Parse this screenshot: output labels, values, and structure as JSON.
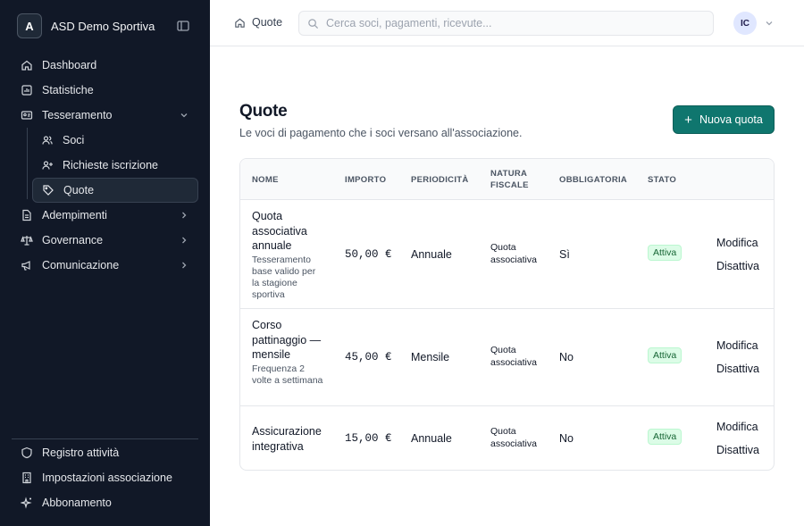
{
  "brand": {
    "initial": "A",
    "name": "ASD Demo Sportiva"
  },
  "sidebar": {
    "items": [
      {
        "label": "Dashboard",
        "icon": "home-icon"
      },
      {
        "label": "Statistiche",
        "icon": "chart-icon"
      },
      {
        "label": "Tesseramento",
        "icon": "id-card-icon",
        "expanded": true,
        "children": [
          {
            "label": "Soci",
            "icon": "users-icon"
          },
          {
            "label": "Richieste iscrizione",
            "icon": "user-plus-icon"
          },
          {
            "label": "Quote",
            "icon": "tag-icon",
            "active": true
          }
        ]
      },
      {
        "label": "Adempimenti",
        "icon": "document-icon"
      },
      {
        "label": "Governance",
        "icon": "scale-icon"
      },
      {
        "label": "Comunicazione",
        "icon": "megaphone-icon"
      }
    ],
    "footer": [
      {
        "label": "Registro attività",
        "icon": "shield-icon"
      },
      {
        "label": "Impostazioni associazione",
        "icon": "building-icon"
      },
      {
        "label": "Abbonamento",
        "icon": "sparkles-icon"
      }
    ]
  },
  "topbar": {
    "breadcrumb": "Quote",
    "search_placeholder": "Cerca soci, pagamenti, ricevute...",
    "user_initials": "IC"
  },
  "main": {
    "title": "Quote",
    "subtitle": "Le voci di pagamento che i soci versano all'associazione.",
    "new_button": "Nuova quota"
  },
  "table": {
    "headers": {
      "nome": "NOME",
      "importo": "IMPORTO",
      "periodicita": "PERIODICITÀ",
      "natura": "NATURA FISCALE",
      "obbligatoria": "OBBLIGATORIA",
      "stato": "STATO"
    },
    "rows": [
      {
        "name": "Quota associativa annuale",
        "description": "Tesseramento base valido per la stagione sportiva",
        "amount": "50,00 €",
        "period": "Annuale",
        "natura": "Quota associativa",
        "obbligatoria": "Sì",
        "stato": "Attiva",
        "edit": "Modifica",
        "disable": "Disattiva"
      },
      {
        "name": "Corso pattinaggio — mensile",
        "description": "Frequenza 2 volte a settimana",
        "amount": "45,00 €",
        "period": "Mensile",
        "natura": "Quota associativa",
        "obbligatoria": "No",
        "stato": "Attiva",
        "edit": "Modifica",
        "disable": "Disattiva"
      },
      {
        "name": "Assicurazione integrativa",
        "description": "",
        "amount": "15,00 €",
        "period": "Annuale",
        "natura": "Quota associativa",
        "obbligatoria": "No",
        "stato": "Attiva",
        "edit": "Modifica",
        "disable": "Disattiva"
      }
    ]
  },
  "colors": {
    "sidebar_bg": "#111827",
    "accent": "#0f766e",
    "badge_bg": "#dcfce7",
    "badge_text": "#166534"
  }
}
